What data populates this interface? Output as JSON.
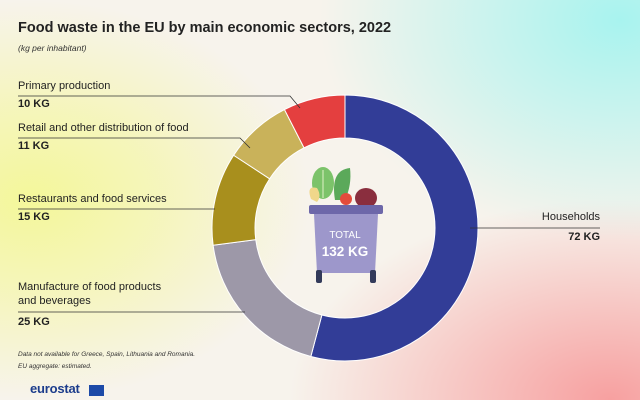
{
  "title": "Food waste in the EU by main economic sectors, 2022",
  "subtitle": "(kg per inhabitant)",
  "chart_data": {
    "type": "pie",
    "donut": true,
    "unit": "KG",
    "categories": [
      "Households",
      "Manufacture of food products and beverages",
      "Restaurants and food services",
      "Retail and other distribution of food",
      "Primary production"
    ],
    "values": [
      72,
      25,
      15,
      11,
      10
    ],
    "value_labels": [
      "72 KG",
      "25 KG",
      "15 KG",
      "11 KG",
      "10 KG"
    ],
    "colors": [
      "#323d97",
      "#9d98a8",
      "#a88f1d",
      "#c9b25a",
      "#e43f3f"
    ],
    "center_label": "TOTAL",
    "center_value": "132 KG"
  },
  "notes": [
    "Data not available for Greece, Spain, Lithuania and Romania.",
    "EU aggregate: estimated."
  ],
  "logo": "eurostat",
  "icons": [
    "food-bin-icon",
    "eu-flag-icon"
  ]
}
